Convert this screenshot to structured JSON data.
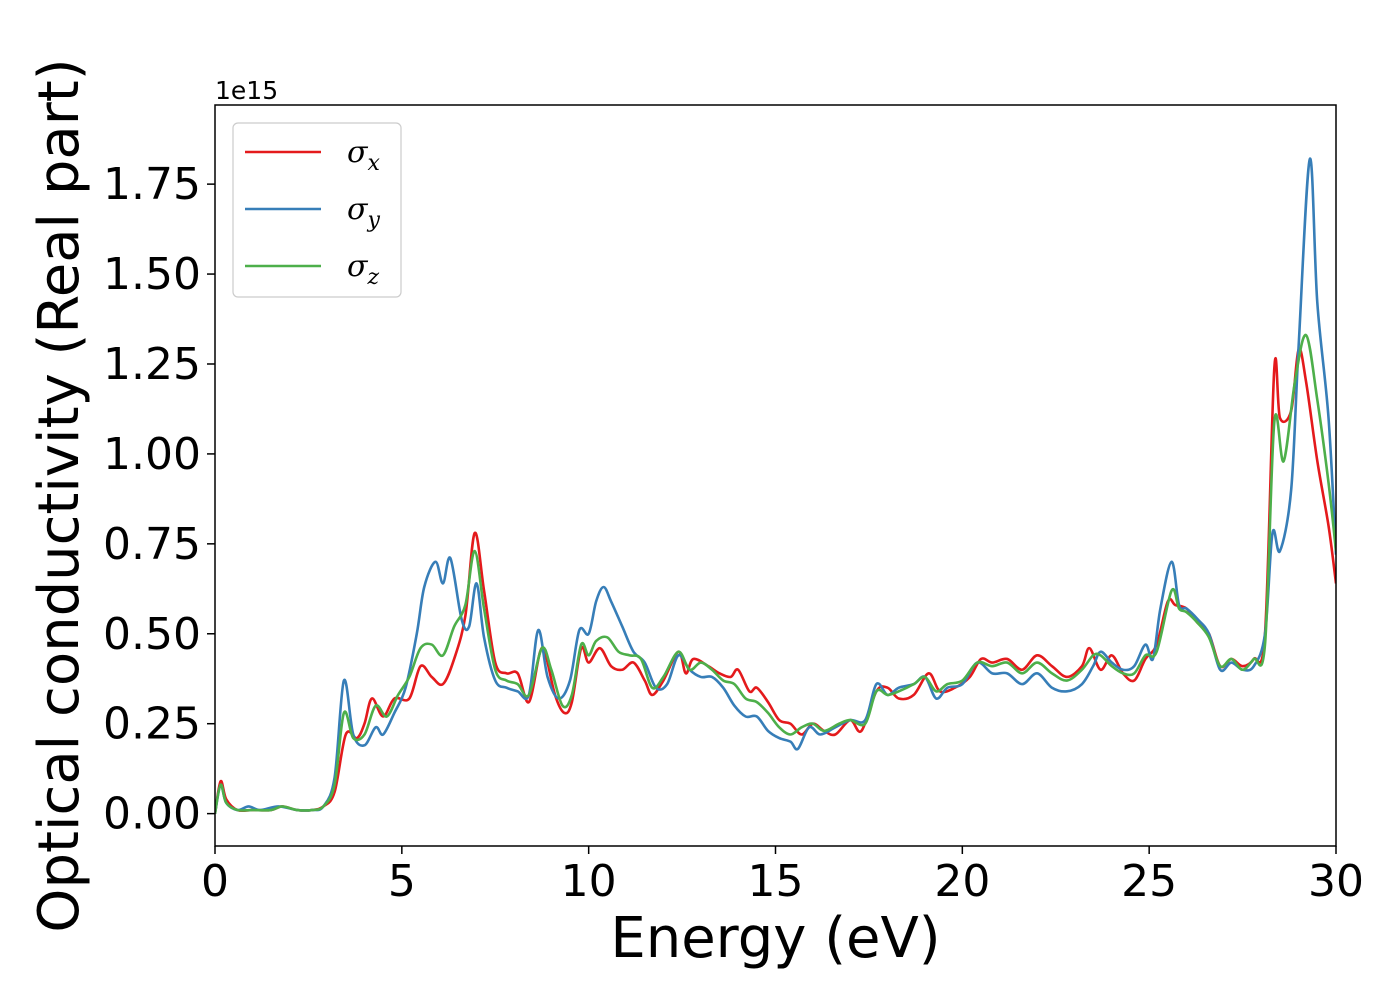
{
  "chart_data": {
    "type": "line",
    "xlabel": "Energy (eV)",
    "ylabel": "Optical conductivity (Real part)",
    "offset_text": "1e15",
    "xlim": [
      0,
      30
    ],
    "ylim": [
      -0.09,
      1.97
    ],
    "x_ticks": [
      0,
      5,
      10,
      15,
      20,
      25,
      30
    ],
    "x_tick_labels": [
      "0",
      "5",
      "10",
      "15",
      "20",
      "25",
      "30"
    ],
    "y_ticks": [
      0.0,
      0.25,
      0.5,
      0.75,
      1.0,
      1.25,
      1.5,
      1.75
    ],
    "y_tick_labels": [
      "0.00",
      "0.25",
      "0.50",
      "0.75",
      "1.00",
      "1.25",
      "1.50",
      "1.75"
    ],
    "grid": false,
    "legend_position": "top-left",
    "series": [
      {
        "name": "σ",
        "subscript": "x",
        "color": "#e41a1c",
        "points": [
          [
            0,
            0
          ],
          [
            0.15,
            0.09
          ],
          [
            0.3,
            0.04
          ],
          [
            0.6,
            0.01
          ],
          [
            1.0,
            0.01
          ],
          [
            1.5,
            0.01
          ],
          [
            1.8,
            0.02
          ],
          [
            2.2,
            0.01
          ],
          [
            2.6,
            0.01
          ],
          [
            2.9,
            0.02
          ],
          [
            3.2,
            0.06
          ],
          [
            3.5,
            0.22
          ],
          [
            3.8,
            0.21
          ],
          [
            4.0,
            0.25
          ],
          [
            4.2,
            0.32
          ],
          [
            4.5,
            0.27
          ],
          [
            4.8,
            0.32
          ],
          [
            5.2,
            0.32
          ],
          [
            5.5,
            0.41
          ],
          [
            5.8,
            0.38
          ],
          [
            6.1,
            0.36
          ],
          [
            6.4,
            0.43
          ],
          [
            6.7,
            0.55
          ],
          [
            6.95,
            0.78
          ],
          [
            7.2,
            0.62
          ],
          [
            7.5,
            0.42
          ],
          [
            7.8,
            0.39
          ],
          [
            8.1,
            0.39
          ],
          [
            8.4,
            0.31
          ],
          [
            8.7,
            0.45
          ],
          [
            8.85,
            0.44
          ],
          [
            9.1,
            0.33
          ],
          [
            9.35,
            0.28
          ],
          [
            9.55,
            0.31
          ],
          [
            9.8,
            0.46
          ],
          [
            10.0,
            0.42
          ],
          [
            10.3,
            0.46
          ],
          [
            10.6,
            0.41
          ],
          [
            10.9,
            0.4
          ],
          [
            11.2,
            0.42
          ],
          [
            11.5,
            0.37
          ],
          [
            11.7,
            0.33
          ],
          [
            12.0,
            0.37
          ],
          [
            12.4,
            0.45
          ],
          [
            12.6,
            0.39
          ],
          [
            12.8,
            0.43
          ],
          [
            13.2,
            0.41
          ],
          [
            13.5,
            0.39
          ],
          [
            13.8,
            0.38
          ],
          [
            14.0,
            0.4
          ],
          [
            14.3,
            0.34
          ],
          [
            14.5,
            0.35
          ],
          [
            14.8,
            0.31
          ],
          [
            15.1,
            0.26
          ],
          [
            15.4,
            0.25
          ],
          [
            15.7,
            0.22
          ],
          [
            16.0,
            0.25
          ],
          [
            16.3,
            0.23
          ],
          [
            16.6,
            0.22
          ],
          [
            17.0,
            0.26
          ],
          [
            17.3,
            0.23
          ],
          [
            17.7,
            0.34
          ],
          [
            18.0,
            0.35
          ],
          [
            18.3,
            0.32
          ],
          [
            18.7,
            0.33
          ],
          [
            19.1,
            0.39
          ],
          [
            19.4,
            0.34
          ],
          [
            19.8,
            0.35
          ],
          [
            20.2,
            0.38
          ],
          [
            20.5,
            0.43
          ],
          [
            20.8,
            0.42
          ],
          [
            21.2,
            0.43
          ],
          [
            21.6,
            0.4
          ],
          [
            22.0,
            0.44
          ],
          [
            22.4,
            0.41
          ],
          [
            22.8,
            0.38
          ],
          [
            23.2,
            0.41
          ],
          [
            23.4,
            0.46
          ],
          [
            23.7,
            0.4
          ],
          [
            24.0,
            0.44
          ],
          [
            24.3,
            0.39
          ],
          [
            24.6,
            0.37
          ],
          [
            24.9,
            0.43
          ],
          [
            25.2,
            0.47
          ],
          [
            25.5,
            0.59
          ],
          [
            25.7,
            0.58
          ],
          [
            26.0,
            0.57
          ],
          [
            26.3,
            0.53
          ],
          [
            26.6,
            0.5
          ],
          [
            26.9,
            0.41
          ],
          [
            27.2,
            0.43
          ],
          [
            27.5,
            0.41
          ],
          [
            27.8,
            0.43
          ],
          [
            28.1,
            0.5
          ],
          [
            28.35,
            1.24
          ],
          [
            28.5,
            1.1
          ],
          [
            28.8,
            1.12
          ],
          [
            29.0,
            1.29
          ],
          [
            29.2,
            1.2
          ],
          [
            29.5,
            0.98
          ],
          [
            29.8,
            0.8
          ],
          [
            30.0,
            0.64
          ]
        ]
      },
      {
        "name": "σ",
        "subscript": "y",
        "color": "#377eb8",
        "points": [
          [
            0,
            0
          ],
          [
            0.15,
            0.08
          ],
          [
            0.3,
            0.03
          ],
          [
            0.6,
            0.01
          ],
          [
            0.9,
            0.02
          ],
          [
            1.2,
            0.01
          ],
          [
            1.7,
            0.02
          ],
          [
            2.2,
            0.01
          ],
          [
            2.6,
            0.01
          ],
          [
            2.9,
            0.02
          ],
          [
            3.2,
            0.1
          ],
          [
            3.45,
            0.37
          ],
          [
            3.7,
            0.22
          ],
          [
            4.0,
            0.19
          ],
          [
            4.3,
            0.24
          ],
          [
            4.5,
            0.22
          ],
          [
            4.8,
            0.28
          ],
          [
            5.1,
            0.35
          ],
          [
            5.4,
            0.5
          ],
          [
            5.6,
            0.63
          ],
          [
            5.9,
            0.7
          ],
          [
            6.1,
            0.64
          ],
          [
            6.3,
            0.71
          ],
          [
            6.6,
            0.54
          ],
          [
            6.8,
            0.52
          ],
          [
            7.0,
            0.64
          ],
          [
            7.2,
            0.49
          ],
          [
            7.5,
            0.37
          ],
          [
            7.8,
            0.35
          ],
          [
            8.1,
            0.34
          ],
          [
            8.4,
            0.33
          ],
          [
            8.65,
            0.51
          ],
          [
            8.9,
            0.38
          ],
          [
            9.2,
            0.32
          ],
          [
            9.5,
            0.37
          ],
          [
            9.75,
            0.51
          ],
          [
            10.0,
            0.5
          ],
          [
            10.2,
            0.59
          ],
          [
            10.4,
            0.63
          ],
          [
            10.6,
            0.59
          ],
          [
            10.9,
            0.52
          ],
          [
            11.2,
            0.45
          ],
          [
            11.5,
            0.42
          ],
          [
            11.8,
            0.35
          ],
          [
            12.1,
            0.36
          ],
          [
            12.4,
            0.44
          ],
          [
            12.7,
            0.4
          ],
          [
            13.0,
            0.38
          ],
          [
            13.3,
            0.38
          ],
          [
            13.6,
            0.35
          ],
          [
            13.9,
            0.3
          ],
          [
            14.2,
            0.27
          ],
          [
            14.5,
            0.27
          ],
          [
            14.8,
            0.23
          ],
          [
            15.1,
            0.21
          ],
          [
            15.4,
            0.2
          ],
          [
            15.6,
            0.18
          ],
          [
            15.9,
            0.24
          ],
          [
            16.2,
            0.22
          ],
          [
            16.6,
            0.24
          ],
          [
            17.0,
            0.26
          ],
          [
            17.4,
            0.26
          ],
          [
            17.7,
            0.36
          ],
          [
            18.0,
            0.33
          ],
          [
            18.3,
            0.35
          ],
          [
            18.7,
            0.36
          ],
          [
            19.0,
            0.38
          ],
          [
            19.3,
            0.32
          ],
          [
            19.6,
            0.35
          ],
          [
            20.0,
            0.36
          ],
          [
            20.4,
            0.42
          ],
          [
            20.8,
            0.39
          ],
          [
            21.2,
            0.39
          ],
          [
            21.6,
            0.36
          ],
          [
            22.0,
            0.39
          ],
          [
            22.4,
            0.35
          ],
          [
            22.8,
            0.34
          ],
          [
            23.2,
            0.36
          ],
          [
            23.5,
            0.41
          ],
          [
            23.7,
            0.45
          ],
          [
            24.0,
            0.42
          ],
          [
            24.3,
            0.4
          ],
          [
            24.6,
            0.41
          ],
          [
            24.9,
            0.47
          ],
          [
            25.1,
            0.43
          ],
          [
            25.3,
            0.57
          ],
          [
            25.6,
            0.7
          ],
          [
            25.8,
            0.58
          ],
          [
            26.0,
            0.57
          ],
          [
            26.3,
            0.54
          ],
          [
            26.6,
            0.5
          ],
          [
            26.9,
            0.4
          ],
          [
            27.2,
            0.42
          ],
          [
            27.5,
            0.4
          ],
          [
            27.8,
            0.41
          ],
          [
            28.1,
            0.5
          ],
          [
            28.3,
            0.78
          ],
          [
            28.5,
            0.73
          ],
          [
            28.8,
            0.9
          ],
          [
            29.0,
            1.3
          ],
          [
            29.3,
            1.82
          ],
          [
            29.5,
            1.42
          ],
          [
            29.8,
            1.1
          ],
          [
            30.0,
            0.72
          ]
        ]
      },
      {
        "name": "σ",
        "subscript": "z",
        "color": "#4daf4a",
        "points": [
          [
            0,
            0
          ],
          [
            0.15,
            0.08
          ],
          [
            0.3,
            0.03
          ],
          [
            0.6,
            0.01
          ],
          [
            1.0,
            0.01
          ],
          [
            1.5,
            0.01
          ],
          [
            1.8,
            0.02
          ],
          [
            2.2,
            0.01
          ],
          [
            2.6,
            0.01
          ],
          [
            2.9,
            0.02
          ],
          [
            3.2,
            0.08
          ],
          [
            3.45,
            0.28
          ],
          [
            3.7,
            0.21
          ],
          [
            4.0,
            0.22
          ],
          [
            4.3,
            0.3
          ],
          [
            4.6,
            0.27
          ],
          [
            4.9,
            0.33
          ],
          [
            5.2,
            0.38
          ],
          [
            5.5,
            0.46
          ],
          [
            5.8,
            0.47
          ],
          [
            6.1,
            0.44
          ],
          [
            6.4,
            0.52
          ],
          [
            6.7,
            0.58
          ],
          [
            6.95,
            0.73
          ],
          [
            7.2,
            0.57
          ],
          [
            7.5,
            0.4
          ],
          [
            7.8,
            0.37
          ],
          [
            8.1,
            0.36
          ],
          [
            8.4,
            0.33
          ],
          [
            8.75,
            0.46
          ],
          [
            9.0,
            0.4
          ],
          [
            9.3,
            0.3
          ],
          [
            9.55,
            0.33
          ],
          [
            9.8,
            0.47
          ],
          [
            10.0,
            0.44
          ],
          [
            10.2,
            0.48
          ],
          [
            10.5,
            0.49
          ],
          [
            10.8,
            0.45
          ],
          [
            11.1,
            0.44
          ],
          [
            11.4,
            0.43
          ],
          [
            11.7,
            0.35
          ],
          [
            12.0,
            0.38
          ],
          [
            12.4,
            0.45
          ],
          [
            12.7,
            0.4
          ],
          [
            13.0,
            0.42
          ],
          [
            13.3,
            0.4
          ],
          [
            13.6,
            0.37
          ],
          [
            13.9,
            0.36
          ],
          [
            14.2,
            0.32
          ],
          [
            14.5,
            0.31
          ],
          [
            14.8,
            0.28
          ],
          [
            15.1,
            0.24
          ],
          [
            15.4,
            0.22
          ],
          [
            15.7,
            0.24
          ],
          [
            16.0,
            0.25
          ],
          [
            16.3,
            0.23
          ],
          [
            16.7,
            0.25
          ],
          [
            17.0,
            0.26
          ],
          [
            17.4,
            0.25
          ],
          [
            17.7,
            0.34
          ],
          [
            18.0,
            0.33
          ],
          [
            18.3,
            0.34
          ],
          [
            18.7,
            0.36
          ],
          [
            19.0,
            0.38
          ],
          [
            19.3,
            0.34
          ],
          [
            19.6,
            0.36
          ],
          [
            20.0,
            0.37
          ],
          [
            20.4,
            0.42
          ],
          [
            20.8,
            0.41
          ],
          [
            21.2,
            0.42
          ],
          [
            21.6,
            0.39
          ],
          [
            22.0,
            0.42
          ],
          [
            22.4,
            0.39
          ],
          [
            22.8,
            0.37
          ],
          [
            23.2,
            0.4
          ],
          [
            23.5,
            0.44
          ],
          [
            23.7,
            0.44
          ],
          [
            24.0,
            0.41
          ],
          [
            24.3,
            0.39
          ],
          [
            24.6,
            0.39
          ],
          [
            24.9,
            0.44
          ],
          [
            25.2,
            0.45
          ],
          [
            25.6,
            0.62
          ],
          [
            25.8,
            0.57
          ],
          [
            26.0,
            0.56
          ],
          [
            26.3,
            0.53
          ],
          [
            26.6,
            0.49
          ],
          [
            26.9,
            0.41
          ],
          [
            27.2,
            0.43
          ],
          [
            27.5,
            0.4
          ],
          [
            27.8,
            0.43
          ],
          [
            28.1,
            0.47
          ],
          [
            28.35,
            1.09
          ],
          [
            28.6,
            0.98
          ],
          [
            28.9,
            1.2
          ],
          [
            29.2,
            1.33
          ],
          [
            29.5,
            1.15
          ],
          [
            29.8,
            0.92
          ],
          [
            30.0,
            0.73
          ]
        ]
      }
    ]
  }
}
